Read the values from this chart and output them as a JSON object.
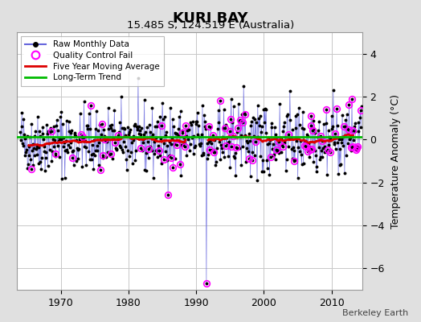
{
  "title": "KURI BAY",
  "subtitle": "15.485 S, 124.519 E (Australia)",
  "ylabel": "Temperature Anomaly (°C)",
  "credit": "Berkeley Earth",
  "ylim": [
    -7,
    5
  ],
  "xlim": [
    1963.5,
    2014.5
  ],
  "yticks": [
    -6,
    -4,
    -2,
    0,
    2,
    4
  ],
  "xticks": [
    1970,
    1980,
    1990,
    2000,
    2010
  ],
  "bg_color": "#e0e0e0",
  "plot_bg_color": "#ffffff",
  "grid_color": "#c8c8c8",
  "line_color": "#6666dd",
  "dot_color": "#000000",
  "ma_color": "#dd0000",
  "trend_color": "#00bb00",
  "qc_color": "#ff00ff",
  "long_term_trend_y": 0.12,
  "start_year": 1964.0,
  "end_year": 2014.5,
  "gap_start_year": 1988.5,
  "gap_end_year": 1991.8,
  "big_spike_year": 1991.5,
  "big_spike_val": -6.7,
  "seed": 42
}
